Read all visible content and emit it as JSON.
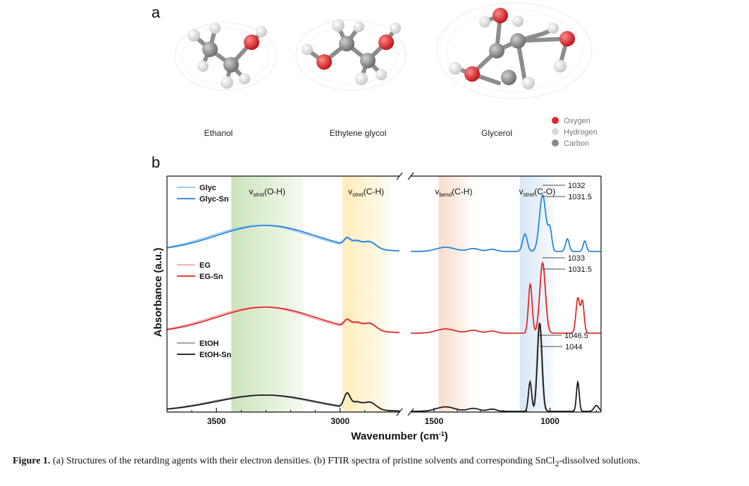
{
  "panels": {
    "a": "a",
    "b": "b"
  },
  "molecules": [
    {
      "name": "Ethanol"
    },
    {
      "name": "Ethylene glycol"
    },
    {
      "name": "Glycerol"
    }
  ],
  "atom_legend": [
    {
      "label": "Oxygen",
      "color": "#e8232a"
    },
    {
      "label": "Hydrogen",
      "color": "#d9d9d9"
    },
    {
      "label": "Carbon",
      "color": "#8a8a8a"
    }
  ],
  "chart_data": {
    "type": "line",
    "xlabel": "Wavenumber (cm-1)",
    "xlabel_main": "Wavenumber (cm",
    "xlabel_sup": "-1",
    "xlabel_close": ")",
    "ylabel": "Absorbance (a.u.)",
    "x_axis": "reversed, broken",
    "x_segments": [
      [
        3700,
        2760
      ],
      [
        1600,
        780
      ]
    ],
    "xticks": [
      3500,
      3000,
      1500,
      1000
    ],
    "xtick_labels": [
      "3500",
      "3000",
      "1500",
      "1000"
    ],
    "regions": [
      {
        "label": "v",
        "sub": "stret",
        "group": "(O-H)",
        "range": [
          3440,
          3150
        ],
        "color": "#a9d18e"
      },
      {
        "label": "v",
        "sub": "stret",
        "group": "(C-H)",
        "range": [
          2990,
          2800
        ],
        "color": "#ffe08a"
      },
      {
        "label": "v",
        "sub": "bend",
        "group": "(C-H)",
        "range": [
          1480,
          1350
        ],
        "color": "#f7c5a8"
      },
      {
        "label": "v",
        "sub": "stret",
        "group": "(C-O)",
        "range": [
          1130,
          980
        ],
        "color": "#bdd7ee"
      }
    ],
    "series": [
      {
        "name": "Glyc",
        "color": "#8ec3ee",
        "group": "Glyc"
      },
      {
        "name": "Glyc-Sn",
        "color": "#1f7fd6",
        "group": "Glyc"
      },
      {
        "name": "EG",
        "color": "#f2a7a7",
        "group": "EG"
      },
      {
        "name": "EG-Sn",
        "color": "#e01f1f",
        "group": "EG"
      },
      {
        "name": "EtOH",
        "color": "#9b9b9b",
        "group": "EtOH"
      },
      {
        "name": "EtOH-Sn",
        "color": "#111111",
        "group": "EtOH"
      }
    ],
    "peak_labels": [
      "1032",
      "1031.5",
      "1033",
      "1031.5",
      "1046.5",
      "1044"
    ],
    "grid": false
  },
  "caption": {
    "lead": "Figure 1.",
    "text": "(a) Structures of the retarding agents with their electron densities. (b) FTIR spectra of pristine solvents and corresponding SnCl",
    "sub": "2",
    "tail": "-dissolved solutions."
  }
}
